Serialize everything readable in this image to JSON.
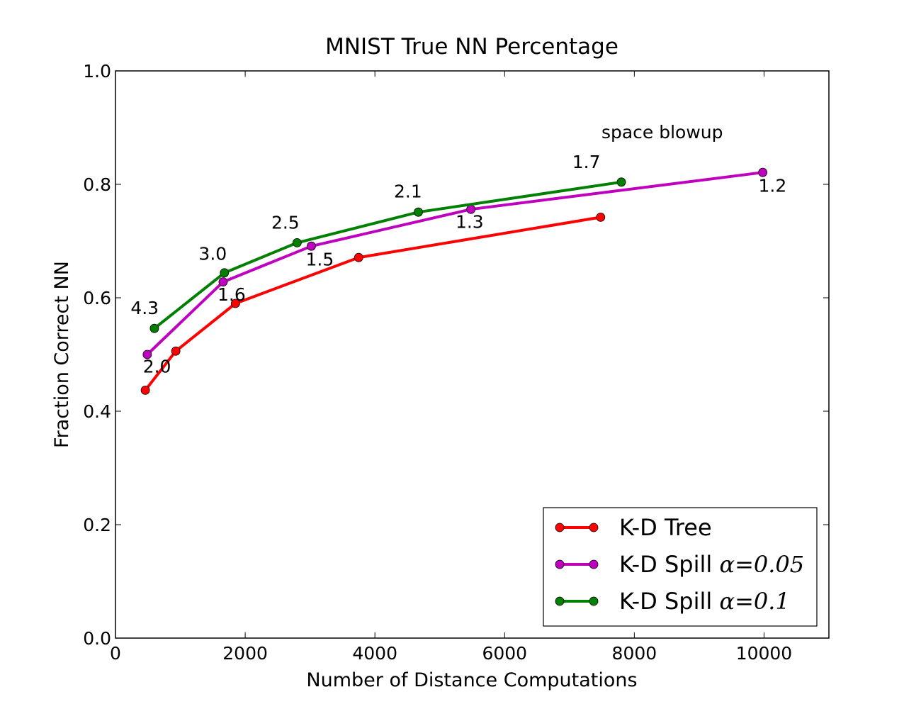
{
  "chart_data": {
    "type": "line",
    "title": "MNIST True NN Percentage",
    "xlabel": "Number of Distance Computations",
    "ylabel": "Fraction Correct NN",
    "xlim": [
      0,
      11000
    ],
    "ylim": [
      0.0,
      1.0
    ],
    "xticks": [
      0,
      2000,
      4000,
      6000,
      8000,
      10000
    ],
    "xtick_labels": [
      "0",
      "2000",
      "4000",
      "6000",
      "8000",
      "10000"
    ],
    "yticks": [
      0.0,
      0.2,
      0.4,
      0.6,
      0.8,
      1.0
    ],
    "ytick_labels": [
      "0.0",
      "0.2",
      "0.4",
      "0.6",
      "0.8",
      "1.0"
    ],
    "grid": false,
    "legend_position": "bottom-right",
    "series": [
      {
        "name": "K-D Tree",
        "name_math": "",
        "color": "#ff0000",
        "x": [
          460,
          930,
          1850,
          3750,
          7480
        ],
        "y": [
          0.437,
          0.506,
          0.59,
          0.671,
          0.742
        ]
      },
      {
        "name": "K-D Spill",
        "name_math": "α=0.05",
        "color": "#bf00bf",
        "x": [
          490,
          1660,
          3020,
          5480,
          9980
        ],
        "y": [
          0.5,
          0.628,
          0.691,
          0.756,
          0.821
        ]
      },
      {
        "name": "K-D Spill",
        "name_math": "α=0.1",
        "color": "#008000",
        "x": [
          600,
          1680,
          2800,
          4670,
          7800
        ],
        "y": [
          0.546,
          0.644,
          0.697,
          0.751,
          0.804
        ]
      }
    ],
    "annotations": [
      {
        "text": "4.3",
        "x": 450,
        "y": 0.571
      },
      {
        "text": "3.0",
        "x": 1500,
        "y": 0.667
      },
      {
        "text": "2.5",
        "x": 2620,
        "y": 0.722
      },
      {
        "text": "2.1",
        "x": 4510,
        "y": 0.777
      },
      {
        "text": "1.7",
        "x": 7260,
        "y": 0.829
      },
      {
        "text": "2.0",
        "x": 640,
        "y": 0.468
      },
      {
        "text": "1.6",
        "x": 1790,
        "y": 0.595
      },
      {
        "text": "1.5",
        "x": 3150,
        "y": 0.657
      },
      {
        "text": "1.3",
        "x": 5460,
        "y": 0.723
      },
      {
        "text": "1.2",
        "x": 10130,
        "y": 0.787
      },
      {
        "text": "space blowup",
        "x": 8430,
        "y": 0.881
      }
    ]
  }
}
